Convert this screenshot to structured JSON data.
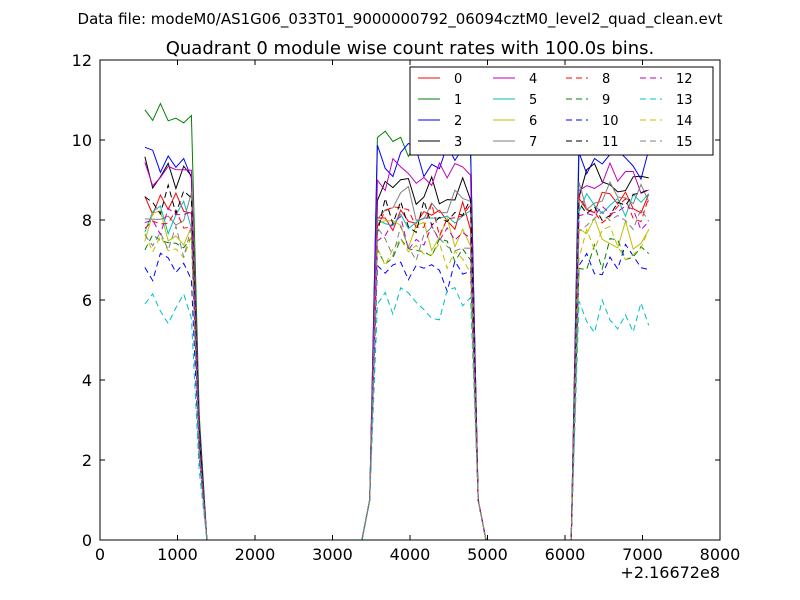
{
  "figure": {
    "suptitle": "Data file: modeM0/AS1G06_033T01_9000000792_06094cztM0_level2_quad_clean.evt",
    "x_offset_label": "+2.16672e8"
  },
  "chart_data": {
    "type": "line",
    "title": "Quadrant 0 module wise count rates with 100.0s bins.",
    "xlabel": "",
    "ylabel": "",
    "xlim": [
      0,
      8000
    ],
    "ylim": [
      0,
      12
    ],
    "x_ticks": [
      0,
      1000,
      2000,
      3000,
      4000,
      5000,
      6000,
      7000,
      8000
    ],
    "y_ticks": [
      0,
      2,
      4,
      6,
      8,
      10,
      12
    ],
    "x_tick_labels": [
      "0",
      "1000",
      "2000",
      "3000",
      "4000",
      "5000",
      "6000",
      "7000",
      "8000"
    ],
    "y_tick_labels": [
      "0",
      "2",
      "4",
      "6",
      "8",
      "10",
      "12"
    ],
    "grid": false,
    "legend": {
      "placement": "top-right",
      "columns": 4
    },
    "x": [
      580,
      680,
      780,
      880,
      980,
      1080,
      1180,
      1280,
      1380,
      1480,
      1580,
      1680,
      1780,
      1880,
      1980,
      2080,
      2180,
      2280,
      2380,
      2480,
      2580,
      2680,
      2780,
      2880,
      2980,
      3080,
      3180,
      3280,
      3380,
      3480,
      3580,
      3680,
      3780,
      3880,
      3980,
      4080,
      4180,
      4280,
      4380,
      4480,
      4580,
      4680,
      4780,
      4880,
      4980,
      5080,
      5180,
      5280,
      5380,
      5480,
      5580,
      5680,
      5780,
      5880,
      5980,
      6080,
      6180,
      6280,
      6380,
      6480,
      6580,
      6680,
      6780,
      6880,
      6980,
      7080
    ],
    "series": [
      {
        "name": "0",
        "color": "#ff0000",
        "dash": "solid",
        "level1": 8.4,
        "level2": 8.1,
        "level3": 8.6
      },
      {
        "name": "1",
        "color": "#008000",
        "dash": "solid",
        "level1": 10.5,
        "level2": 9.9,
        "level3": 10.0
      },
      {
        "name": "2",
        "color": "#0000ff",
        "dash": "solid",
        "level1": 9.5,
        "level2": 9.5,
        "level3": 9.4
      },
      {
        "name": "3",
        "color": "#000000",
        "dash": "solid",
        "level1": 9.2,
        "level2": 8.8,
        "level3": 9.0
      },
      {
        "name": "4",
        "color": "#bf00bf",
        "dash": "solid",
        "level1": 9.0,
        "level2": 9.1,
        "level3": 9.0
      },
      {
        "name": "5",
        "color": "#00bfbf",
        "dash": "solid",
        "level1": 8.1,
        "level2": 7.9,
        "level3": 8.3
      },
      {
        "name": "6",
        "color": "#bfbf00",
        "dash": "solid",
        "level1": 7.8,
        "level2": 7.6,
        "level3": 7.7
      },
      {
        "name": "7",
        "color": "#808080",
        "dash": "solid",
        "level1": 8.3,
        "level2": 8.4,
        "level3": 8.7
      },
      {
        "name": "8",
        "color": "#ff0000",
        "dash": "dashed",
        "level1": 8.0,
        "level2": 8.0,
        "level3": 8.2
      },
      {
        "name": "9",
        "color": "#008000",
        "dash": "dashed",
        "level1": 7.4,
        "level2": 7.2,
        "level3": 7.1
      },
      {
        "name": "10",
        "color": "#0000ff",
        "dash": "dashed",
        "level1": 6.9,
        "level2": 6.6,
        "level3": 7.0
      },
      {
        "name": "11",
        "color": "#000000",
        "dash": "dashed",
        "level1": 8.6,
        "level2": 8.1,
        "level3": 8.4
      },
      {
        "name": "12",
        "color": "#bf00bf",
        "dash": "dashed",
        "level1": 7.9,
        "level2": 7.7,
        "level3": 7.9
      },
      {
        "name": "13",
        "color": "#00bfbf",
        "dash": "dashed",
        "level1": 5.8,
        "level2": 5.9,
        "level3": 5.6
      },
      {
        "name": "14",
        "color": "#bfbf00",
        "dash": "dashed",
        "level1": 7.5,
        "level2": 7.1,
        "level3": 7.4
      },
      {
        "name": "15",
        "color": "#808080",
        "dash": "dashed",
        "level1": 7.4,
        "level2": 7.4,
        "level3": 7.9
      }
    ]
  }
}
